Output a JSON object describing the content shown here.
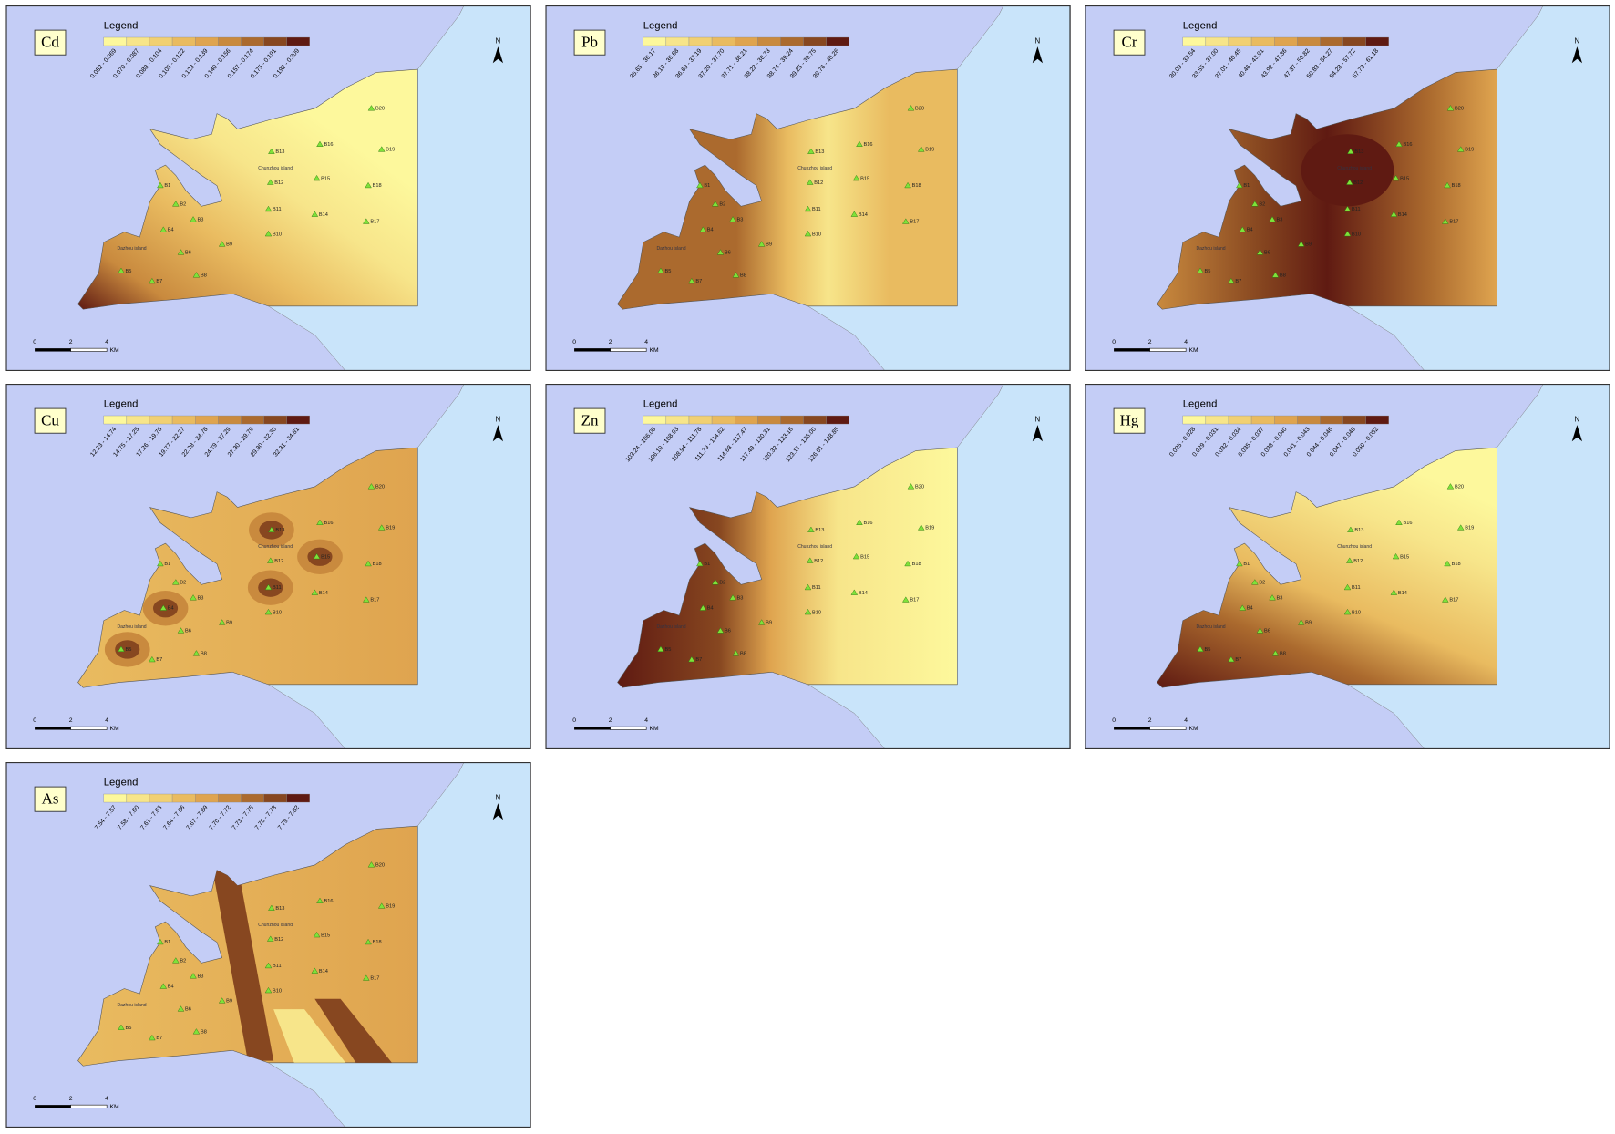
{
  "legend_title": "Legend",
  "north": "N",
  "scale_bar": {
    "labels": [
      "0",
      "2",
      "4"
    ],
    "unit": "KM"
  },
  "legend_colors": [
    "#fdf89c",
    "#f7e58a",
    "#f1d073",
    "#e9bb60",
    "#dfa44f",
    "#c98a3e",
    "#ab6a2e",
    "#874720",
    "#5f1a12"
  ],
  "stations": [
    "B1",
    "B2",
    "B3",
    "B4",
    "B5",
    "B6",
    "B7",
    "B8",
    "B9",
    "B10",
    "B11",
    "B12",
    "B13",
    "B14",
    "B15",
    "B16",
    "B17",
    "B18",
    "B19",
    "B20"
  ],
  "islands": [
    "Chunzhou island",
    "Dazhou island"
  ],
  "panels": [
    {
      "element": "Cd",
      "classes": [
        "0.052 - 0.069",
        "0.070 - 0.087",
        "0.088 - 0.104",
        "0.105 - 0.122",
        "0.123 - 0.139",
        "0.140 - 0.156",
        "0.157 - 0.174",
        "0.175 - 0.191",
        "0.192 - 0.209"
      ]
    },
    {
      "element": "Pb",
      "classes": [
        "35.65 - 36.17",
        "36.18 - 36.68",
        "36.69 - 37.19",
        "37.20 - 37.70",
        "37.71 - 38.21",
        "38.22 - 38.73",
        "38.74 - 39.24",
        "39.25 - 39.75",
        "39.76 - 40.26"
      ]
    },
    {
      "element": "Cr",
      "classes": [
        "30.09 - 33.54",
        "33.55 - 37.00",
        "37.01 - 40.45",
        "40.46 - 43.91",
        "43.92 - 47.36",
        "47.37 - 50.82",
        "50.83 - 54.27",
        "54.28 - 57.72",
        "57.73 - 61.18"
      ]
    },
    {
      "element": "Cu",
      "classes": [
        "12.23 - 14.74",
        "14.75 - 17.25",
        "17.26 - 19.76",
        "19.77 - 22.27",
        "22.28 - 24.78",
        "24.79 - 27.29",
        "27.30 - 29.79",
        "29.80 - 32.30",
        "32.31 - 34.81"
      ]
    },
    {
      "element": "Zn",
      "classes": [
        "103.24 - 106.09",
        "106.10 - 108.93",
        "108.94 - 111.78",
        "111.79 - 114.62",
        "114.63 - 117.47",
        "117.48 - 120.31",
        "120.32 - 123.16",
        "123.17 - 126.00",
        "126.01 - 128.85"
      ]
    },
    {
      "element": "Hg",
      "classes": [
        "0.025 - 0.028",
        "0.029 - 0.031",
        "0.032 - 0.034",
        "0.035 - 0.037",
        "0.038 - 0.040",
        "0.041 - 0.043",
        "0.044 - 0.046",
        "0.047 - 0.049",
        "0.050 - 0.052"
      ]
    },
    {
      "element": "As",
      "classes": [
        "7.54 - 7.57",
        "7.58 - 7.60",
        "7.61 - 7.63",
        "7.64 - 7.66",
        "7.67 - 7.69",
        "7.70 - 7.72",
        "7.73 - 7.75",
        "7.76 - 7.78",
        "7.79 - 7.82"
      ]
    }
  ]
}
